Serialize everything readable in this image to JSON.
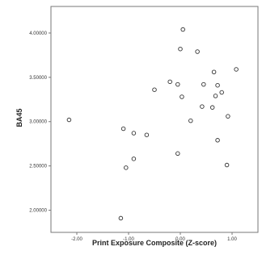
{
  "chart_data": {
    "type": "scatter",
    "title": "",
    "xlabel": "Print Exposure Composite (Z-score)",
    "ylabel": "BA45",
    "xlim": [
      -2.5,
      1.5
    ],
    "ylim": [
      1.75,
      4.3
    ],
    "xticks": [
      -2.0,
      -1.0,
      0.0,
      1.0
    ],
    "xtick_labels": [
      "-2.00",
      "-1.00",
      "0.00",
      "1.00"
    ],
    "yticks": [
      2.0,
      2.5,
      3.0,
      3.5,
      4.0
    ],
    "ytick_labels": [
      "2.00000",
      "2.50000",
      "3.00000",
      "3.50000",
      "4.00000"
    ],
    "grid": false,
    "marker": "open-circle",
    "colors": {
      "marker": "#333333",
      "frame": "#777777",
      "background": "#ffffff"
    },
    "points": [
      {
        "x": 0.05,
        "y": 4.04
      },
      {
        "x": 0.0,
        "y": 3.82
      },
      {
        "x": 0.33,
        "y": 3.79
      },
      {
        "x": 1.08,
        "y": 3.59
      },
      {
        "x": 0.65,
        "y": 3.56
      },
      {
        "x": -0.2,
        "y": 3.45
      },
      {
        "x": -0.05,
        "y": 3.42
      },
      {
        "x": 0.45,
        "y": 3.42
      },
      {
        "x": 0.72,
        "y": 3.41
      },
      {
        "x": -0.5,
        "y": 3.36
      },
      {
        "x": 0.8,
        "y": 3.33
      },
      {
        "x": 0.68,
        "y": 3.29
      },
      {
        "x": 0.03,
        "y": 3.28
      },
      {
        "x": 0.42,
        "y": 3.17
      },
      {
        "x": 0.62,
        "y": 3.16
      },
      {
        "x": 0.92,
        "y": 3.06
      },
      {
        "x": -2.15,
        "y": 3.02
      },
      {
        "x": 0.2,
        "y": 3.01
      },
      {
        "x": -1.1,
        "y": 2.92
      },
      {
        "x": -0.9,
        "y": 2.87
      },
      {
        "x": -0.65,
        "y": 2.85
      },
      {
        "x": 0.72,
        "y": 2.79
      },
      {
        "x": -0.05,
        "y": 2.64
      },
      {
        "x": -0.9,
        "y": 2.58
      },
      {
        "x": 0.9,
        "y": 2.51
      },
      {
        "x": -1.05,
        "y": 2.48
      },
      {
        "x": -1.15,
        "y": 1.91
      }
    ]
  }
}
